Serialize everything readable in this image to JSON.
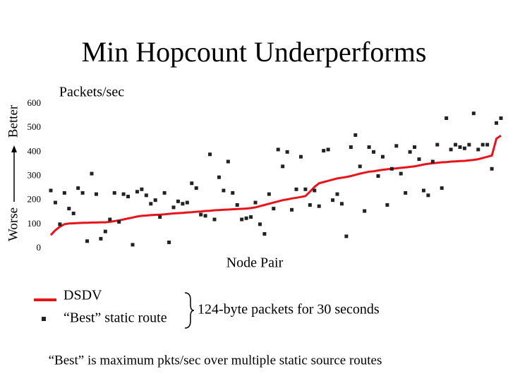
{
  "chart_data": {
    "type": "line",
    "title": "Min Hopcount Underperforms",
    "y_label": "Packets/sec",
    "x_label": "Node Pair",
    "y_direction_low": "Worse",
    "y_direction_high": "Better",
    "ylim": [
      0,
      600
    ],
    "yticks": [
      0,
      100,
      200,
      300,
      400,
      500,
      600
    ],
    "grid": false,
    "series": [
      {
        "name": "DSDV",
        "color": "#e8141c",
        "style": "line",
        "values": [
          55,
          75,
          90,
          100,
          103,
          104,
          105,
          106,
          106,
          107,
          107,
          108,
          108,
          110,
          113,
          116,
          120,
          124,
          128,
          132,
          135,
          136,
          138,
          139,
          140,
          141,
          143,
          145,
          146,
          147,
          149,
          150,
          152,
          153,
          155,
          156,
          158,
          159,
          160,
          161,
          162,
          163,
          164,
          165,
          167,
          170,
          175,
          180,
          185,
          190,
          195,
          200,
          203,
          207,
          210,
          213,
          217,
          235,
          255,
          270,
          275,
          280,
          285,
          290,
          293,
          296,
          300,
          305,
          310,
          314,
          318,
          320,
          323,
          326,
          328,
          330,
          332,
          334,
          336,
          338,
          340,
          344,
          348,
          351,
          353,
          355,
          357,
          358,
          360,
          361,
          362,
          363,
          365,
          367,
          370,
          375,
          380,
          385,
          455,
          468
        ]
      },
      {
        "name": "“Best” static route",
        "color": "#222222",
        "style": "marker",
        "values": [
          240,
          190,
          100,
          230,
          165,
          145,
          250,
          230,
          30,
          310,
          225,
          40,
          70,
          120,
          230,
          110,
          225,
          215,
          15,
          235,
          245,
          220,
          185,
          200,
          130,
          230,
          25,
          170,
          195,
          185,
          190,
          270,
          250,
          140,
          135,
          390,
          120,
          295,
          240,
          360,
          230,
          180,
          120,
          125,
          130,
          190,
          100,
          60,
          225,
          165,
          410,
          340,
          400,
          160,
          245,
          380,
          245,
          180,
          240,
          175,
          405,
          410,
          200,
          225,
          185,
          50,
          420,
          470,
          340,
          155,
          420,
          400,
          300,
          380,
          180,
          330,
          425,
          310,
          230,
          400,
          420,
          370,
          240,
          220,
          360,
          430,
          250,
          540,
          410,
          430,
          420,
          415,
          430,
          560,
          410,
          430,
          430,
          330,
          520,
          540
        ]
      }
    ],
    "annotation": "124-byte packets for 30 seconds",
    "footnote": "“Best” is maximum pkts/sec over multiple static source routes"
  }
}
